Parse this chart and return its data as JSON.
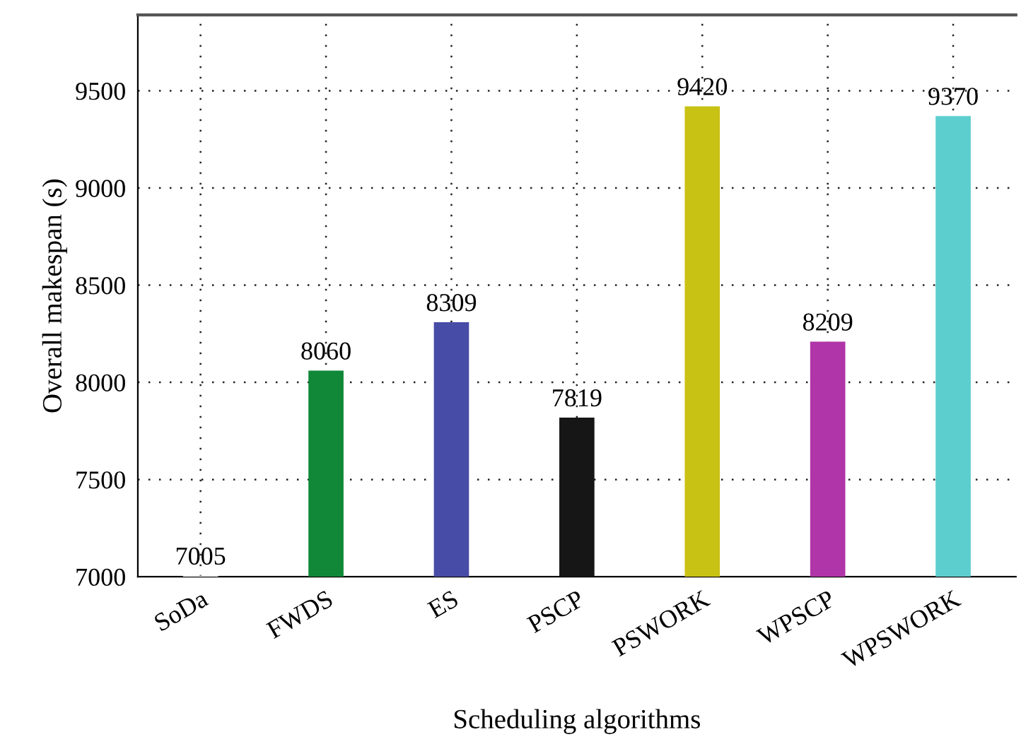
{
  "chart_data": {
    "type": "bar",
    "xlabel": "Scheduling algorithms",
    "ylabel": "Overall makespan (s)",
    "categories": [
      "SoDa",
      "FWDS",
      "ES",
      "PSCP",
      "PSWORK",
      "WPSCP",
      "WPSWORK"
    ],
    "values": [
      7005,
      8060,
      8309,
      7819,
      9420,
      8209,
      9370
    ],
    "colors": [
      "#ffffff",
      "#108837",
      "#474ca6",
      "#161616",
      "#c8c214",
      "#b035a8",
      "#5dcece"
    ],
    "ylim": [
      7000,
      9890
    ],
    "yticks": [
      7000,
      7500,
      8000,
      8500,
      9000,
      9500
    ],
    "grid": true,
    "data_labels": true
  }
}
